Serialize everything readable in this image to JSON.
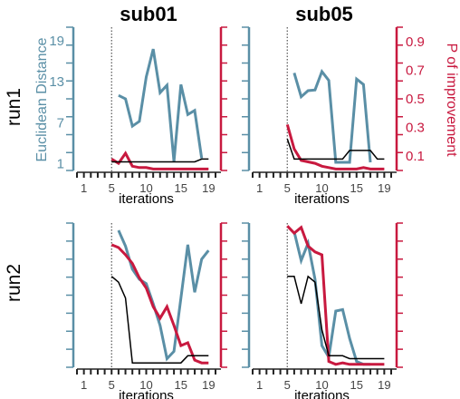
{
  "chart_data": [
    {
      "type": "line",
      "col_title": "sub01",
      "row_title": "run1",
      "xlabel": "iterations",
      "ylabel_left": "Euclidean Distance",
      "xticks": [
        1,
        5,
        10,
        15,
        19
      ],
      "yticks_left": [
        1,
        7,
        13,
        19
      ],
      "xlim": [
        0,
        20
      ],
      "ylim_left": [
        0,
        21
      ],
      "ylim_right": [
        0,
        1
      ],
      "vline_x": 5,
      "series": [
        {
          "color": "#5a8fa6",
          "x": [
            6,
            7,
            8,
            9,
            10,
            11,
            12,
            13,
            14,
            15,
            16,
            17,
            18
          ],
          "y": [
            11,
            10.5,
            6.5,
            7.2,
            13.7,
            17.8,
            11.4,
            12.5,
            1.3,
            12.6,
            8.2,
            8.8,
            1.8
          ]
        },
        {
          "color": "#c8193f",
          "x": [
            5,
            6,
            7,
            8,
            9,
            10,
            11,
            12,
            13,
            14,
            15,
            16,
            17,
            18,
            19
          ],
          "y": [
            0.08,
            0.05,
            0.12,
            0.03,
            0.02,
            0.02,
            0.01,
            0.01,
            0.01,
            0.01,
            0.01,
            0.01,
            0.01,
            0.01,
            0.01
          ]
        },
        {
          "color": "#000000",
          "x": [
            5,
            6,
            7,
            8,
            9,
            10,
            11,
            12,
            13,
            14,
            15,
            16,
            17,
            18,
            19
          ],
          "y": [
            0.06,
            0.06,
            0.06,
            0.06,
            0.06,
            0.06,
            0.06,
            0.06,
            0.06,
            0.06,
            0.06,
            0.06,
            0.06,
            0.08,
            0.08
          ]
        }
      ]
    },
    {
      "type": "line",
      "col_title": "sub05",
      "row_title": "",
      "xlabel": "iterations",
      "ylabel_right": "P of improvement",
      "xticks": [
        1,
        5,
        10,
        15,
        19
      ],
      "yticks_right": [
        0.1,
        0.3,
        0.5,
        0.7,
        0.9
      ],
      "xlim": [
        0,
        20
      ],
      "ylim_left": [
        0,
        21
      ],
      "ylim_right": [
        0,
        1
      ],
      "vline_x": 5,
      "series": [
        {
          "color": "#5a8fa6",
          "x": [
            6,
            7,
            8,
            9,
            10,
            11,
            12,
            13,
            14,
            15,
            16,
            17
          ],
          "y": [
            14.3,
            10.8,
            11.7,
            11.8,
            14.5,
            13.2,
            1.2,
            1.2,
            1.2,
            13.4,
            12.6,
            1.2
          ]
        },
        {
          "color": "#c8193f",
          "x": [
            5,
            6,
            7,
            8,
            9,
            10,
            11,
            12,
            13,
            14,
            15,
            16,
            17,
            18,
            19
          ],
          "y": [
            0.32,
            0.15,
            0.07,
            0.06,
            0.05,
            0.03,
            0.02,
            0.01,
            0.01,
            0.01,
            0.01,
            0.02,
            0.01,
            0.01,
            0.01
          ]
        },
        {
          "color": "#000000",
          "x": [
            5,
            6,
            7,
            8,
            9,
            10,
            11,
            12,
            13,
            14,
            15,
            16,
            17,
            18,
            19
          ],
          "y": [
            0.22,
            0.08,
            0.08,
            0.08,
            0.08,
            0.08,
            0.08,
            0.08,
            0.08,
            0.14,
            0.14,
            0.14,
            0.14,
            0.08,
            0.08
          ]
        }
      ]
    },
    {
      "type": "line",
      "col_title": "",
      "row_title": "run2",
      "xlabel": "iterations",
      "xticks": [
        1,
        5,
        10,
        15,
        19
      ],
      "xlim": [
        0,
        20
      ],
      "ylim_left": [
        0,
        1
      ],
      "ylim_right": [
        0,
        1
      ],
      "vline_x": 5,
      "series": [
        {
          "color": "#5a8fa6",
          "x": [
            6,
            7,
            8,
            9,
            10,
            11,
            12,
            13,
            14,
            15,
            16,
            17,
            18,
            19
          ],
          "y": [
            0.95,
            0.84,
            0.68,
            0.61,
            0.58,
            0.44,
            0.29,
            0.06,
            0.11,
            0.48,
            0.85,
            0.52,
            0.75,
            0.81
          ]
        },
        {
          "color": "#c8193f",
          "x": [
            5,
            6,
            7,
            8,
            9,
            10,
            11,
            12,
            13,
            14,
            15,
            16,
            17,
            18,
            19
          ],
          "y": [
            0.85,
            0.83,
            0.78,
            0.72,
            0.62,
            0.55,
            0.42,
            0.34,
            0.42,
            0.29,
            0.15,
            0.17,
            0.05,
            0.03,
            0.03
          ]
        },
        {
          "color": "#000000",
          "x": [
            5,
            6,
            7,
            8,
            9,
            10,
            11,
            12,
            13,
            14,
            15,
            16,
            17,
            18,
            19
          ],
          "y": [
            0.63,
            0.59,
            0.48,
            0.03,
            0.03,
            0.03,
            0.03,
            0.03,
            0.03,
            0.03,
            0.03,
            0.08,
            0.08,
            0.08,
            0.08
          ]
        }
      ]
    },
    {
      "type": "line",
      "col_title": "",
      "row_title": "",
      "xlabel": "iterations",
      "xticks": [
        1,
        5,
        10,
        15,
        19
      ],
      "xlim": [
        0,
        20
      ],
      "ylim_left": [
        0,
        1
      ],
      "ylim_right": [
        0,
        1
      ],
      "vline_x": 5,
      "series": [
        {
          "color": "#5a8fa6",
          "x": [
            6,
            7,
            8,
            9,
            10,
            11,
            12,
            13,
            14,
            15,
            16,
            17
          ],
          "y": [
            0.94,
            0.74,
            0.86,
            0.61,
            0.15,
            0.07,
            0.39,
            0.4,
            0.2,
            0.04,
            0.02,
            0.02
          ]
        },
        {
          "color": "#c8193f",
          "x": [
            5,
            6,
            7,
            8,
            9,
            10,
            11,
            12,
            13,
            14,
            15,
            16,
            17,
            18,
            19
          ],
          "y": [
            0.98,
            0.93,
            0.97,
            0.84,
            0.8,
            0.78,
            0.04,
            0.02,
            0.03,
            0.02,
            0.02,
            0.02,
            0.02,
            0.02,
            0.02
          ]
        },
        {
          "color": "#000000",
          "x": [
            5,
            6,
            7,
            8,
            9,
            10,
            11,
            12,
            13,
            14,
            15,
            16,
            17,
            18,
            19
          ],
          "y": [
            0.63,
            0.63,
            0.44,
            0.63,
            0.59,
            0.26,
            0.08,
            0.08,
            0.08,
            0.06,
            0.06,
            0.06,
            0.06,
            0.06,
            0.06
          ]
        }
      ]
    }
  ]
}
